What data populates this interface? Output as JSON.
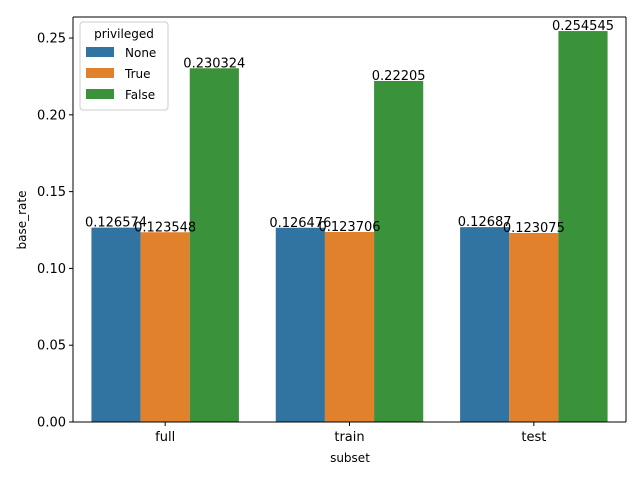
{
  "chart_data": {
    "type": "bar",
    "categories": [
      "full",
      "train",
      "test"
    ],
    "series": [
      {
        "name": "None",
        "color": "#3274a1",
        "values": [
          0.126574,
          0.126476,
          0.12687
        ]
      },
      {
        "name": "True",
        "color": "#e1812c",
        "values": [
          0.123548,
          0.123706,
          0.123075
        ]
      },
      {
        "name": "False",
        "color": "#3a923a",
        "values": [
          0.230324,
          0.22205,
          0.254545
        ]
      }
    ],
    "data_labels": [
      [
        "0.126574",
        "0.126476",
        "0.12687"
      ],
      [
        "0.123548",
        "0.123706",
        "0.123075"
      ],
      [
        "0.230324",
        "0.22205",
        "0.254545"
      ]
    ],
    "xlabel": "subset",
    "ylabel": "base_rate",
    "ylim": [
      0,
      0.2637
    ],
    "yticks": [
      0.0,
      0.05,
      0.1,
      0.15,
      0.2,
      0.25
    ],
    "ytick_labels": [
      "0.00",
      "0.05",
      "0.10",
      "0.15",
      "0.20",
      "0.25"
    ],
    "legend_title": "privileged",
    "legend_position": "top-left",
    "grid": false
  }
}
